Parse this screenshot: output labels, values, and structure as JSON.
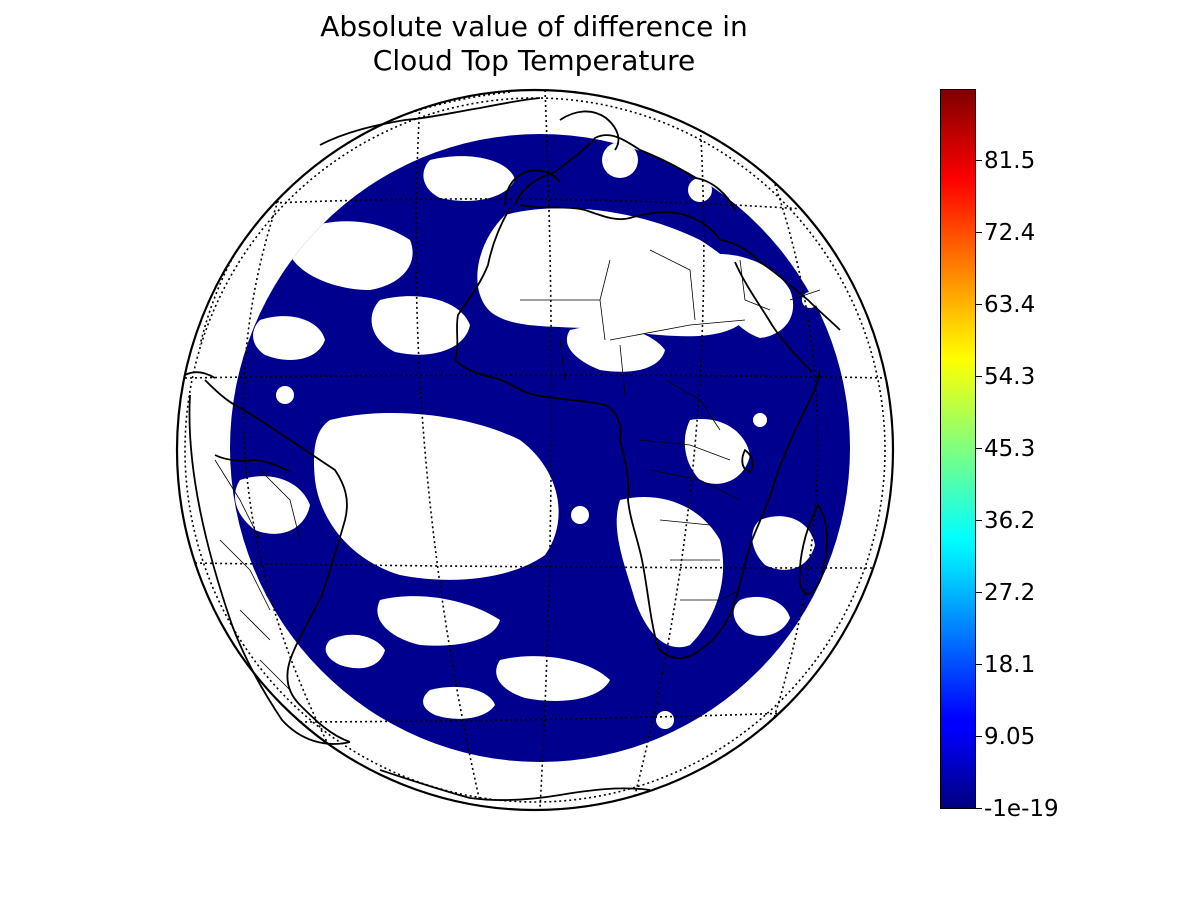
{
  "figure": {
    "title_line1": "Absolute value of difference in",
    "title_line2": "Cloud Top Temperature"
  },
  "map": {
    "projection": "orthographic",
    "field_color": "#00008f",
    "clear_color": "#ffffff",
    "coastline_color": "#000000",
    "graticule_style": "dotted"
  },
  "colorbar": {
    "colormap": "jet",
    "vmin": -1e-19,
    "vmax": 90.5,
    "tick_labels": [
      "-1e-19",
      "9.05",
      "18.1",
      "27.2",
      "36.2",
      "45.3",
      "54.3",
      "63.4",
      "72.4",
      "81.5"
    ],
    "tick_values": [
      -1e-19,
      9.05,
      18.1,
      27.2,
      36.2,
      45.3,
      54.3,
      63.4,
      72.4,
      81.5
    ]
  },
  "chart_data": {
    "type": "heatmap",
    "title": "Absolute value of difference in Cloud Top Temperature",
    "colorbar_ticks": [
      "-1e-19",
      "9.05",
      "18.1",
      "27.2",
      "36.2",
      "45.3",
      "54.3",
      "63.4",
      "72.4",
      "81.5"
    ],
    "value_range": [
      -1e-19,
      90.5
    ],
    "dominant_value": 0
  }
}
